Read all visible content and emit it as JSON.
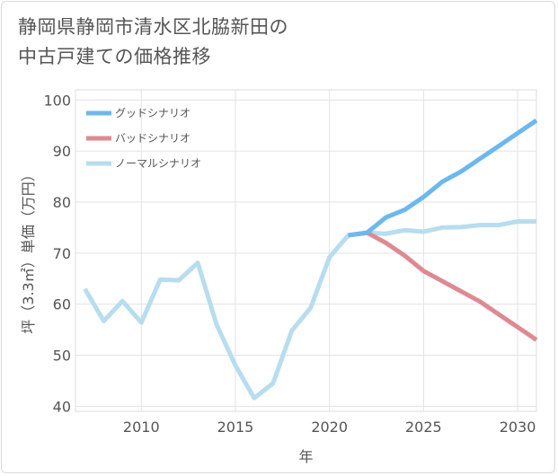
{
  "title_line1": "静岡県静岡市清水区北脇新田の",
  "title_line2": "中古戸建ての価格推移",
  "chart_data": {
    "type": "line",
    "xlabel": "年",
    "ylabel": "坪（3.3㎡）単価（万円）",
    "xlim": [
      2006.5,
      2031
    ],
    "ylim": [
      39,
      102
    ],
    "xticks": [
      2010,
      2015,
      2020,
      2025,
      2030
    ],
    "yticks": [
      40,
      50,
      60,
      70,
      80,
      90,
      100
    ],
    "grid": true,
    "legend_position": "top-left",
    "series": [
      {
        "name": "グッドシナリオ",
        "color": "#6cb8ee",
        "x": [
          2021,
          2022,
          2023,
          2024,
          2025,
          2026,
          2027,
          2028,
          2029,
          2030,
          2031
        ],
        "y": [
          73.5,
          74.0,
          77.0,
          78.5,
          81.0,
          84.0,
          86.0,
          88.5,
          91.0,
          93.5,
          96.0
        ]
      },
      {
        "name": "バッドシナリオ",
        "color": "#dd8a92",
        "x": [
          2021,
          2022,
          2023,
          2024,
          2025,
          2026,
          2027,
          2028,
          2029,
          2030,
          2031
        ],
        "y": [
          73.5,
          74.0,
          72.0,
          69.5,
          66.5,
          64.5,
          62.5,
          60.5,
          58.0,
          55.5,
          53.0
        ]
      },
      {
        "name": "ノーマルシナリオ",
        "color": "#b7ddef",
        "x": [
          2007,
          2008,
          2009,
          2010,
          2011,
          2012,
          2013,
          2014,
          2015,
          2016,
          2017,
          2018,
          2019,
          2020,
          2021,
          2022,
          2023,
          2024,
          2025,
          2026,
          2027,
          2028,
          2029,
          2030,
          2031
        ],
        "y": [
          63.0,
          56.7,
          60.6,
          56.4,
          64.8,
          64.7,
          68.1,
          56.0,
          48.0,
          41.6,
          44.5,
          54.8,
          59.3,
          69.2,
          73.5,
          74.0,
          73.8,
          74.5,
          74.2,
          75.0,
          75.1,
          75.5,
          75.5,
          76.2,
          76.2
        ]
      }
    ]
  }
}
